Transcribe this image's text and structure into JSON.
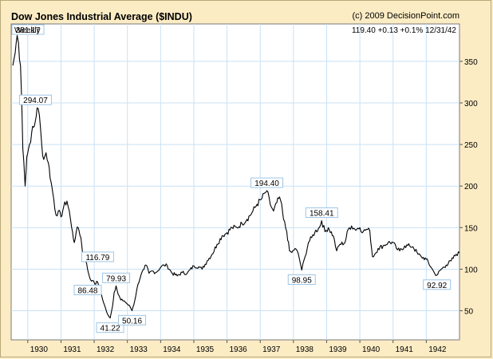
{
  "header": {
    "title": "Dow Jones Industrial Average ($INDU)",
    "credit": "(c) 2009 DecisionPoint.com"
  },
  "chart_info": {
    "period": "Weekly",
    "last_value": "119.40",
    "change": "+0.13",
    "change_pct": "+0.1%",
    "last_date": "12/31/42"
  },
  "colors": {
    "background": "#fcecc4",
    "plot_bg": "#ffffff",
    "grid": "#c8e1f5",
    "line": "#000000",
    "label_box_border": "#9dc6e6"
  },
  "chart_data": {
    "type": "line",
    "title": "Dow Jones Industrial Average ($INDU)",
    "xlabel": "",
    "ylabel": "",
    "ylim": [
      15,
      395
    ],
    "xlim": [
      1929.5,
      1943.0
    ],
    "grid": true,
    "yticks": [
      50,
      100,
      150,
      200,
      250,
      300,
      350
    ],
    "xticks": [
      {
        "label": "1930",
        "x": 1930.0
      },
      {
        "label": "1931",
        "x": 1931.0
      },
      {
        "label": "1932",
        "x": 1932.0
      },
      {
        "label": "1933",
        "x": 1933.0
      },
      {
        "label": "1934",
        "x": 1934.0
      },
      {
        "label": "1935",
        "x": 1935.0
      },
      {
        "label": "1936",
        "x": 1936.0
      },
      {
        "label": "1937",
        "x": 1937.0
      },
      {
        "label": "1938",
        "x": 1938.0
      },
      {
        "label": "1939",
        "x": 1939.0
      },
      {
        "label": "1940",
        "x": 1940.0
      },
      {
        "label": "1941",
        "x": 1941.0
      },
      {
        "label": "1942",
        "x": 1942.0
      }
    ],
    "series": [
      {
        "values": [
          [
            1929.55,
            345
          ],
          [
            1929.62,
            360
          ],
          [
            1929.68,
            381.17
          ],
          [
            1929.72,
            372
          ],
          [
            1929.78,
            345
          ],
          [
            1929.82,
            300
          ],
          [
            1929.85,
            245
          ],
          [
            1929.88,
            230
          ],
          [
            1929.92,
            200
          ],
          [
            1929.97,
            235
          ],
          [
            1930.05,
            250
          ],
          [
            1930.12,
            265
          ],
          [
            1930.2,
            272
          ],
          [
            1930.28,
            294.07
          ],
          [
            1930.35,
            285
          ],
          [
            1930.42,
            250
          ],
          [
            1930.48,
            232
          ],
          [
            1930.55,
            240
          ],
          [
            1930.62,
            228
          ],
          [
            1930.7,
            205
          ],
          [
            1930.78,
            185
          ],
          [
            1930.85,
            165
          ],
          [
            1930.92,
            170
          ],
          [
            1931.0,
            163
          ],
          [
            1931.08,
            175
          ],
          [
            1931.18,
            182
          ],
          [
            1931.25,
            170
          ],
          [
            1931.32,
            150
          ],
          [
            1931.4,
            132
          ],
          [
            1931.46,
            145
          ],
          [
            1931.52,
            150
          ],
          [
            1931.6,
            138
          ],
          [
            1931.68,
            110
          ],
          [
            1931.72,
            116.79
          ],
          [
            1931.8,
            100
          ],
          [
            1931.88,
            88
          ],
          [
            1931.95,
            86.48
          ],
          [
            1932.02,
            82
          ],
          [
            1932.1,
            85
          ],
          [
            1932.18,
            75
          ],
          [
            1932.28,
            60
          ],
          [
            1932.38,
            48
          ],
          [
            1932.48,
            41.22
          ],
          [
            1932.55,
            55
          ],
          [
            1932.6,
            72
          ],
          [
            1932.66,
            79.93
          ],
          [
            1932.72,
            70
          ],
          [
            1932.8,
            63
          ],
          [
            1932.9,
            62
          ],
          [
            1933.0,
            58
          ],
          [
            1933.08,
            55
          ],
          [
            1933.14,
            50.16
          ],
          [
            1933.22,
            62
          ],
          [
            1933.32,
            82
          ],
          [
            1933.4,
            92
          ],
          [
            1933.5,
            100
          ],
          [
            1933.56,
            105
          ],
          [
            1933.65,
            95
          ],
          [
            1933.75,
            98
          ],
          [
            1933.85,
            96
          ],
          [
            1934.0,
            102
          ],
          [
            1934.1,
            105
          ],
          [
            1934.2,
            104
          ],
          [
            1934.35,
            95
          ],
          [
            1934.5,
            92
          ],
          [
            1934.65,
            96
          ],
          [
            1934.8,
            95
          ],
          [
            1935.0,
            104
          ],
          [
            1935.15,
            103
          ],
          [
            1935.25,
            100
          ],
          [
            1935.4,
            110
          ],
          [
            1935.55,
            118
          ],
          [
            1935.7,
            130
          ],
          [
            1935.85,
            140
          ],
          [
            1936.0,
            144
          ],
          [
            1936.15,
            150
          ],
          [
            1936.3,
            150
          ],
          [
            1936.45,
            155
          ],
          [
            1936.6,
            160
          ],
          [
            1936.75,
            168
          ],
          [
            1936.9,
            178
          ],
          [
            1937.05,
            185
          ],
          [
            1937.15,
            192
          ],
          [
            1937.2,
            194.4
          ],
          [
            1937.3,
            178
          ],
          [
            1937.4,
            170
          ],
          [
            1937.5,
            180
          ],
          [
            1937.58,
            187
          ],
          [
            1937.62,
            182
          ],
          [
            1937.7,
            160
          ],
          [
            1937.8,
            145
          ],
          [
            1937.88,
            122
          ],
          [
            1937.95,
            120
          ],
          [
            1938.05,
            125
          ],
          [
            1938.15,
            118
          ],
          [
            1938.25,
            98.95
          ],
          [
            1938.35,
            115
          ],
          [
            1938.45,
            132
          ],
          [
            1938.55,
            138
          ],
          [
            1938.65,
            145
          ],
          [
            1938.78,
            150
          ],
          [
            1938.85,
            158.41
          ],
          [
            1938.95,
            145
          ],
          [
            1939.05,
            150
          ],
          [
            1939.2,
            140
          ],
          [
            1939.3,
            122
          ],
          [
            1939.4,
            130
          ],
          [
            1939.55,
            132
          ],
          [
            1939.65,
            148
          ],
          [
            1939.75,
            152
          ],
          [
            1939.85,
            148
          ],
          [
            1940.0,
            150
          ],
          [
            1940.1,
            145
          ],
          [
            1940.2,
            148
          ],
          [
            1940.3,
            146
          ],
          [
            1940.38,
            115
          ],
          [
            1940.45,
            118
          ],
          [
            1940.55,
            125
          ],
          [
            1940.7,
            128
          ],
          [
            1940.85,
            132
          ],
          [
            1941.0,
            132
          ],
          [
            1941.1,
            125
          ],
          [
            1941.2,
            122
          ],
          [
            1941.35,
            128
          ],
          [
            1941.5,
            128
          ],
          [
            1941.6,
            127
          ],
          [
            1941.75,
            118
          ],
          [
            1941.85,
            115
          ],
          [
            1942.0,
            112
          ],
          [
            1942.15,
            102
          ],
          [
            1942.25,
            95
          ],
          [
            1942.32,
            92.92
          ],
          [
            1942.45,
            100
          ],
          [
            1942.6,
            105
          ],
          [
            1942.75,
            110
          ],
          [
            1942.9,
            118
          ],
          [
            1943.0,
            119.4
          ]
        ]
      }
    ],
    "annotations": [
      {
        "text": "381.17",
        "x": 1929.68,
        "y": 381.17,
        "anchor": "left-above"
      },
      {
        "text": "294.07",
        "x": 1930.28,
        "y": 294.07,
        "anchor": "left-above"
      },
      {
        "text": "116.79",
        "x": 1931.72,
        "y": 116.79,
        "anchor": "right"
      },
      {
        "text": "86.48",
        "x": 1931.95,
        "y": 86.48,
        "anchor": "left-below"
      },
      {
        "text": "41.22",
        "x": 1932.48,
        "y": 41.22,
        "anchor": "below"
      },
      {
        "text": "79.93",
        "x": 1932.66,
        "y": 79.93,
        "anchor": "above"
      },
      {
        "text": "50.16",
        "x": 1933.14,
        "y": 50.16,
        "anchor": "below"
      },
      {
        "text": "194.40",
        "x": 1937.2,
        "y": 194.4,
        "anchor": "above"
      },
      {
        "text": "98.95",
        "x": 1938.25,
        "y": 98.95,
        "anchor": "below"
      },
      {
        "text": "158.41",
        "x": 1938.85,
        "y": 158.41,
        "anchor": "above"
      },
      {
        "text": "92.92",
        "x": 1942.32,
        "y": 92.92,
        "anchor": "below"
      }
    ]
  }
}
